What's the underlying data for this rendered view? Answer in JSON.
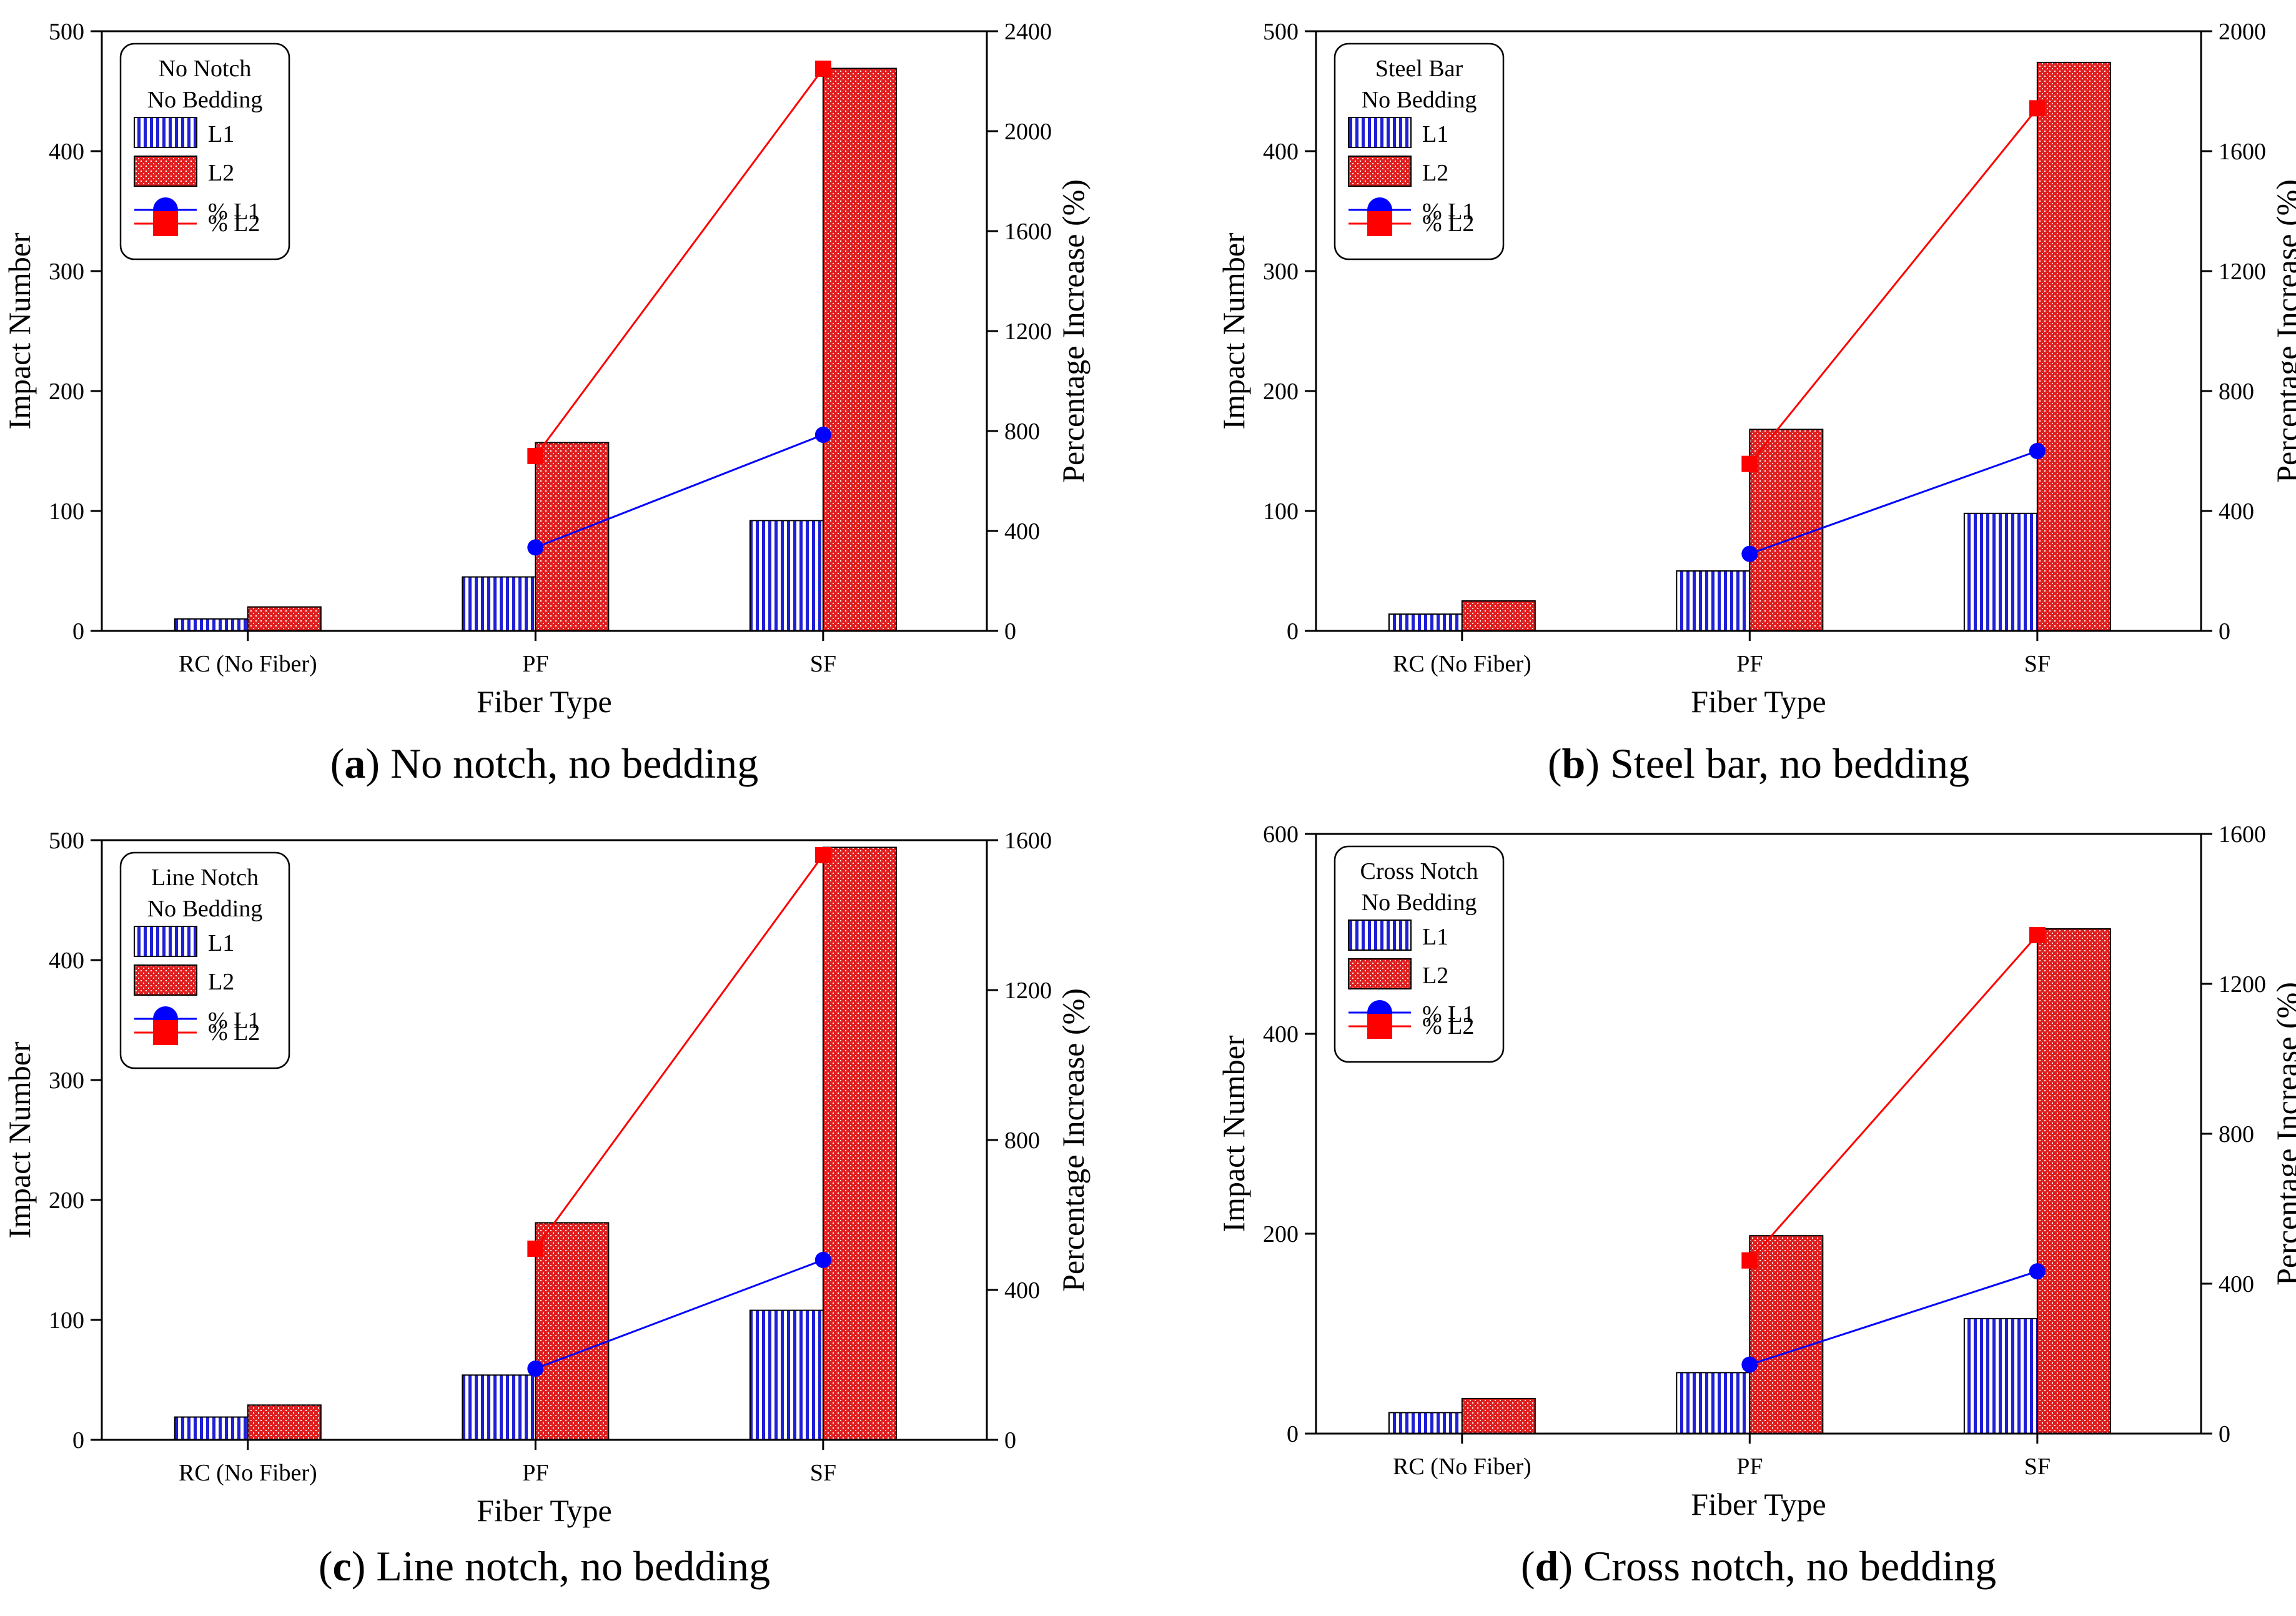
{
  "colors": {
    "l1_bar": "#1f1fd6",
    "l2_bar": "#e02020",
    "l1_line": "#0000ff",
    "l2_line": "#ff0000",
    "axis": "#000000"
  },
  "chart_data": [
    {
      "type": "bar",
      "panel": "a",
      "caption_letter": "a",
      "caption_text": "No notch, no bedding",
      "legend_title": [
        "No Notch",
        "No Bedding"
      ],
      "legend_entries": [
        "L1",
        "L2",
        "% L1",
        "% L2"
      ],
      "categories": [
        "RC (No Fiber)",
        "PF",
        "SF"
      ],
      "xlabel": "Fiber Type",
      "ylabel": "Impact Number",
      "y2label": "Percentage Increase (%)",
      "ylim": [
        0,
        500
      ],
      "yticks": [
        0,
        100,
        200,
        300,
        400,
        500
      ],
      "y2lim": [
        0,
        2400
      ],
      "y2ticks": [
        0,
        400,
        800,
        1200,
        1600,
        2000,
        2400
      ],
      "series": [
        {
          "name": "L1",
          "kind": "bar",
          "axis": "left",
          "values": [
            10,
            45,
            92
          ]
        },
        {
          "name": "L2",
          "kind": "bar",
          "axis": "left",
          "values": [
            20,
            157,
            469
          ]
        },
        {
          "name": "% L1",
          "kind": "line",
          "axis": "right",
          "values": [
            null,
            334,
            785
          ]
        },
        {
          "name": "% L2",
          "kind": "line",
          "axis": "right",
          "values": [
            null,
            700,
            2250
          ]
        }
      ]
    },
    {
      "type": "bar",
      "panel": "b",
      "caption_letter": "b",
      "caption_text": "Steel bar, no bedding",
      "legend_title": [
        "Steel Bar",
        "No Bedding"
      ],
      "legend_entries": [
        "L1",
        "L2",
        "% L1",
        "% L2"
      ],
      "categories": [
        "RC (No Fiber)",
        "PF",
        "SF"
      ],
      "xlabel": "Fiber Type",
      "ylabel": "Impact Number",
      "y2label": "Percentage Increase (%)",
      "ylim": [
        0,
        500
      ],
      "yticks": [
        0,
        100,
        200,
        300,
        400,
        500
      ],
      "y2lim": [
        0,
        2000
      ],
      "y2ticks": [
        0,
        400,
        800,
        1200,
        1600,
        2000
      ],
      "series": [
        {
          "name": "L1",
          "kind": "bar",
          "axis": "left",
          "values": [
            14,
            50,
            98
          ]
        },
        {
          "name": "L2",
          "kind": "bar",
          "axis": "left",
          "values": [
            25,
            168,
            474
          ]
        },
        {
          "name": "% L1",
          "kind": "line",
          "axis": "right",
          "values": [
            null,
            257,
            600
          ]
        },
        {
          "name": "% L2",
          "kind": "line",
          "axis": "right",
          "values": [
            null,
            557,
            1743
          ]
        }
      ]
    },
    {
      "type": "bar",
      "panel": "c",
      "caption_letter": "c",
      "caption_text": "Line notch, no bedding",
      "legend_title": [
        "Line Notch",
        "No Bedding"
      ],
      "legend_entries": [
        "L1",
        "L2",
        "% L1",
        "% L2"
      ],
      "categories": [
        "RC (No Fiber)",
        "PF",
        "SF"
      ],
      "xlabel": "Fiber Type",
      "ylabel": "Impact Number",
      "y2label": "Percentage Increase (%)",
      "ylim": [
        0,
        500
      ],
      "yticks": [
        0,
        100,
        200,
        300,
        400,
        500
      ],
      "y2lim": [
        0,
        1600
      ],
      "y2ticks": [
        0,
        400,
        800,
        1200,
        1600
      ],
      "series": [
        {
          "name": "L1",
          "kind": "bar",
          "axis": "left",
          "values": [
            19,
            54,
            108
          ]
        },
        {
          "name": "L2",
          "kind": "bar",
          "axis": "left",
          "values": [
            29,
            181,
            494
          ]
        },
        {
          "name": "% L1",
          "kind": "line",
          "axis": "right",
          "values": [
            null,
            190,
            480
          ]
        },
        {
          "name": "% L2",
          "kind": "line",
          "axis": "right",
          "values": [
            null,
            510,
            1560
          ]
        }
      ]
    },
    {
      "type": "bar",
      "panel": "d",
      "caption_letter": "d",
      "caption_text": "Cross notch, no bedding",
      "legend_title": [
        "Cross Notch",
        "No Bedding"
      ],
      "legend_entries": [
        "L1",
        "L2",
        "% L1",
        "% L2"
      ],
      "categories": [
        "RC (No Fiber)",
        "PF",
        "SF"
      ],
      "xlabel": "Fiber Type",
      "ylabel": "Impact Number",
      "y2label": "Percentage Increase (%)",
      "ylim": [
        0,
        600
      ],
      "yticks": [
        0,
        200,
        400,
        600
      ],
      "y2lim": [
        0,
        1600
      ],
      "y2ticks": [
        0,
        400,
        800,
        1200,
        1600
      ],
      "series": [
        {
          "name": "L1",
          "kind": "bar",
          "axis": "left",
          "values": [
            21,
            61,
            115
          ]
        },
        {
          "name": "L2",
          "kind": "bar",
          "axis": "left",
          "values": [
            35,
            198,
            505
          ]
        },
        {
          "name": "% L1",
          "kind": "line",
          "axis": "right",
          "values": [
            null,
            184,
            433
          ]
        },
        {
          "name": "% L2",
          "kind": "line",
          "axis": "right",
          "values": [
            null,
            462,
            1330
          ]
        }
      ]
    }
  ]
}
